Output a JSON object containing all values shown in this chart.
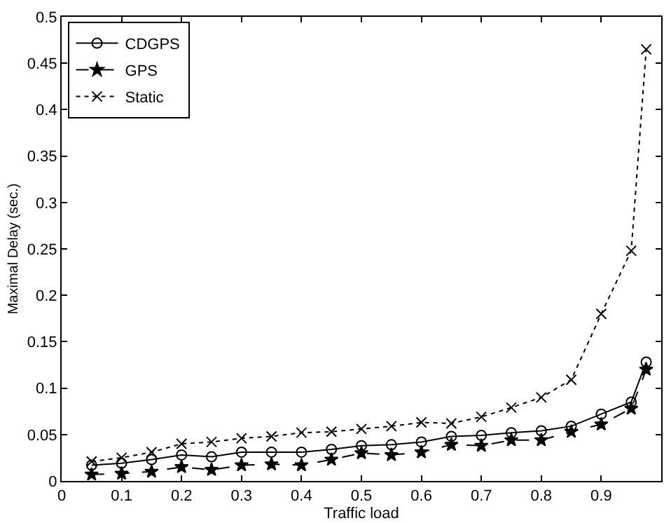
{
  "chart_data": {
    "type": "line",
    "xlabel": "Traffic load",
    "ylabel": "Maximal Delay (sec.)",
    "x": [
      0.05,
      0.1,
      0.15,
      0.2,
      0.25,
      0.3,
      0.35,
      0.4,
      0.45,
      0.5,
      0.55,
      0.6,
      0.65,
      0.7,
      0.75,
      0.8,
      0.85,
      0.9,
      0.95,
      0.975
    ],
    "series": [
      {
        "name": "CDGPS",
        "color": "#000000",
        "marker": "circle",
        "line_style": "solid",
        "values": [
          0.017,
          0.019,
          0.023,
          0.028,
          0.026,
          0.031,
          0.031,
          0.031,
          0.034,
          0.038,
          0.039,
          0.042,
          0.048,
          0.049,
          0.052,
          0.054,
          0.059,
          0.072,
          0.085,
          0.128
        ]
      },
      {
        "name": "GPS",
        "color": "#000000",
        "marker": "star",
        "line_style": "dashed",
        "values": [
          0.007,
          0.008,
          0.01,
          0.015,
          0.012,
          0.017,
          0.018,
          0.017,
          0.023,
          0.03,
          0.028,
          0.031,
          0.039,
          0.038,
          0.044,
          0.044,
          0.053,
          0.061,
          0.078,
          0.12
        ]
      },
      {
        "name": "Static",
        "color": "#000000",
        "marker": "cross",
        "line_style": "dotted",
        "values": [
          0.021,
          0.025,
          0.031,
          0.04,
          0.042,
          0.046,
          0.048,
          0.052,
          0.053,
          0.056,
          0.059,
          0.063,
          0.062,
          0.069,
          0.079,
          0.09,
          0.109,
          0.18,
          0.248,
          0.465
        ]
      }
    ],
    "xlim": [
      0,
      1
    ],
    "xticks": [
      0,
      0.1,
      0.2,
      0.3,
      0.4,
      0.5,
      0.6,
      0.7,
      0.8,
      0.9,
      {
        "value": 1,
        "label": null
      }
    ],
    "ylim": [
      0,
      0.5
    ],
    "yticks": [
      0,
      0.05,
      0.1,
      0.15,
      0.2,
      0.25,
      0.3,
      0.35,
      0.4,
      0.45,
      0.5
    ],
    "grid": false,
    "legend": "top left"
  }
}
